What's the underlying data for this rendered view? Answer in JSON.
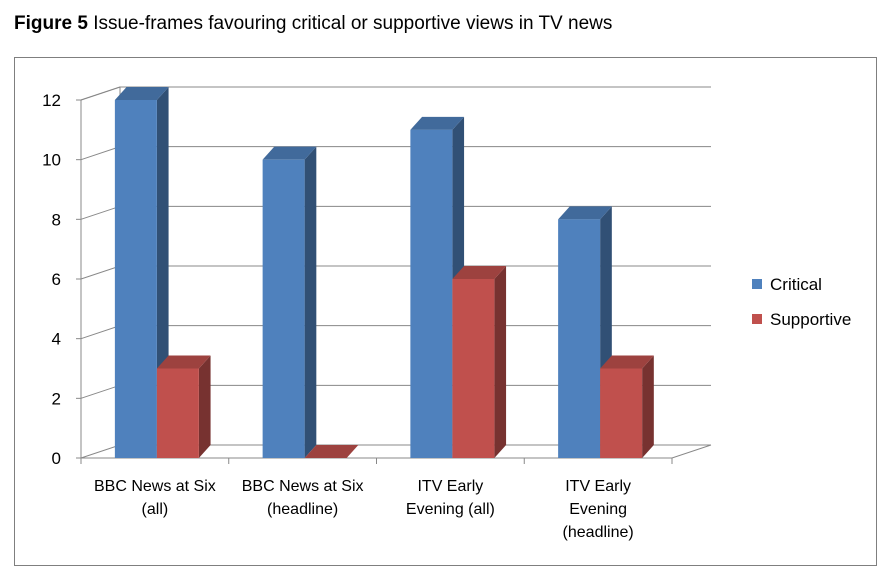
{
  "figure": {
    "label": "Figure 5",
    "caption": "Issue-frames favouring critical or supportive views in TV news"
  },
  "chart_data": {
    "type": "bar",
    "title": "",
    "xlabel": "",
    "ylabel": "",
    "categories": [
      [
        "BBC News at Six",
        "(all)"
      ],
      [
        "BBC News at Six",
        "(headline)"
      ],
      [
        "ITV Early",
        "Evening (all)"
      ],
      [
        "ITV Early",
        "Evening",
        "(headline)"
      ]
    ],
    "series": [
      {
        "name": "Critical",
        "values": [
          12,
          10,
          11,
          8
        ],
        "color": "#4f81bd"
      },
      {
        "name": "Supportive",
        "values": [
          3,
          0,
          6,
          3
        ],
        "color": "#c0504d"
      }
    ],
    "ylim": [
      0,
      12
    ],
    "yticks": [
      0,
      2,
      4,
      6,
      8,
      10,
      12
    ],
    "grid": true,
    "style": "3d-clustered-column",
    "legend": "right"
  }
}
